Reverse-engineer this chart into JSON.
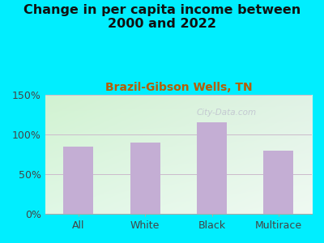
{
  "title": "Change in per capita income between\n2000 and 2022",
  "subtitle": "Brazil-Gibson Wells, TN",
  "categories": [
    "All",
    "White",
    "Black",
    "Multirace"
  ],
  "values": [
    85,
    90,
    115,
    80
  ],
  "bar_color": "#c4aed4",
  "bar_edge_color": "#b09cc0",
  "title_fontsize": 11.5,
  "subtitle_fontsize": 10,
  "subtitle_color": "#b85c00",
  "tick_label_fontsize": 9,
  "ylim": [
    0,
    150
  ],
  "yticks": [
    0,
    50,
    100,
    150
  ],
  "ytick_labels": [
    "0%",
    "50%",
    "100%",
    "150%"
  ],
  "bg_outer": "#00eeff",
  "grid_color": "#ddbbcc",
  "watermark": "City-Data.com"
}
